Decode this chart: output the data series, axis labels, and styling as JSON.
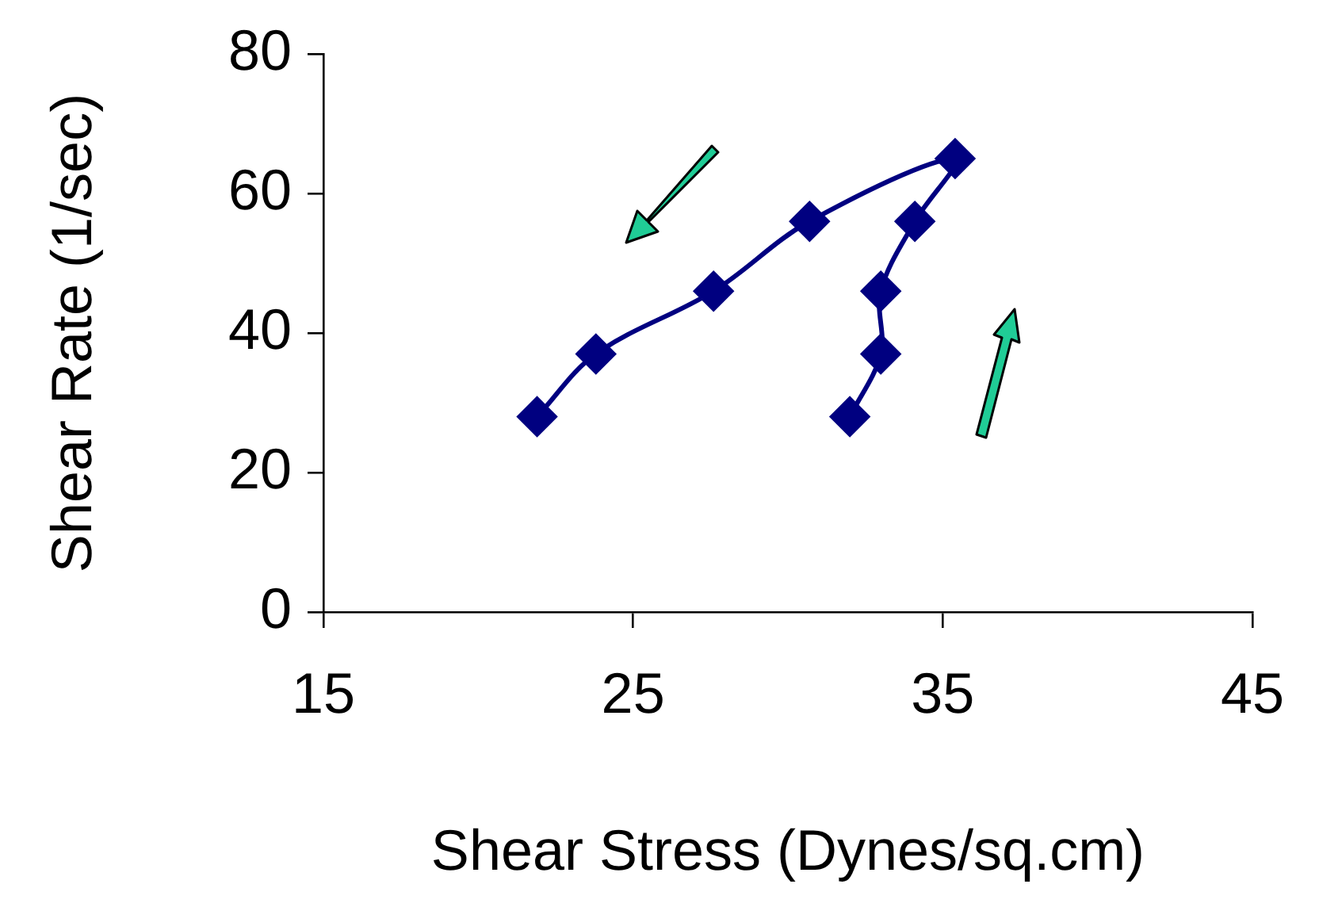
{
  "chart_data": {
    "type": "line",
    "xlabel": "Shear Stress (Dynes/sq.cm)",
    "ylabel": "Shear Rate (1/sec)",
    "x": [
      32.0,
      33.0,
      33.0,
      34.1,
      35.4,
      30.7,
      27.6,
      23.8,
      21.9
    ],
    "series": [
      {
        "color": "#000080",
        "values": [
          28,
          37,
          46,
          56,
          65,
          56,
          46,
          37,
          28
        ]
      }
    ],
    "xlim": [
      15,
      45
    ],
    "xticks": [
      15,
      25,
      35,
      45
    ],
    "ylim": [
      0,
      80
    ],
    "yticks": [
      0,
      20,
      40,
      60,
      80
    ],
    "grid": false,
    "legend": false,
    "marker": "diamond",
    "line_style": "solid"
  }
}
